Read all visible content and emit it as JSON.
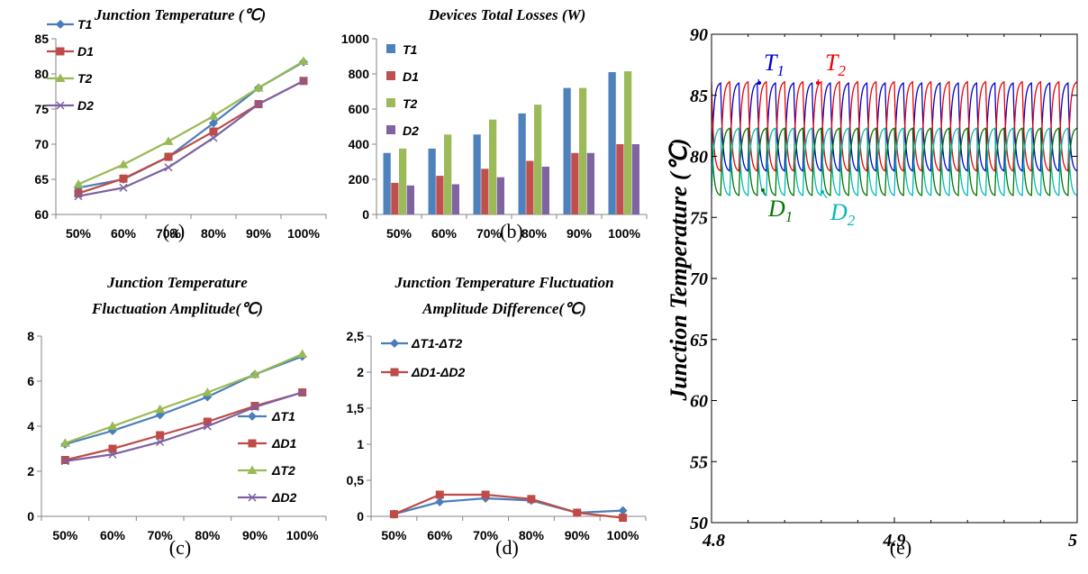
{
  "chart_data": [
    {
      "id": "a",
      "type": "line",
      "title": "Junction Temperature (℃)",
      "subcaption": "(a)",
      "categories": [
        "50%",
        "60%",
        "70%",
        "80%",
        "90%",
        "100%"
      ],
      "ylim": [
        60,
        85
      ],
      "yticks": [
        60,
        65,
        70,
        75,
        80,
        85
      ],
      "legend_position": "top-left",
      "series": [
        {
          "name": "T1",
          "color": "#4a7ebb",
          "marker": "diamond",
          "values": [
            63.8,
            65.0,
            68.2,
            73.0,
            78.0,
            81.7
          ]
        },
        {
          "name": "D1",
          "color": "#be4b48",
          "marker": "square",
          "values": [
            63.0,
            65.1,
            68.2,
            71.8,
            75.7,
            79.0
          ]
        },
        {
          "name": "T2",
          "color": "#98b954",
          "marker": "triangle",
          "values": [
            64.3,
            67.1,
            70.4,
            74.0,
            78.0,
            81.8
          ]
        },
        {
          "name": "D2",
          "color": "#7d60a0",
          "marker": "x",
          "values": [
            62.6,
            63.8,
            66.7,
            70.9,
            75.7,
            79.0
          ]
        }
      ]
    },
    {
      "id": "b",
      "type": "bar",
      "title": "Devices Total Losses (W)",
      "subcaption": "(b)",
      "categories": [
        "50%",
        "60%",
        "70%",
        "80%",
        "90%",
        "100%"
      ],
      "ylim": [
        0,
        1000
      ],
      "yticks": [
        0,
        200,
        400,
        600,
        800,
        1000
      ],
      "legend_position": "top-left",
      "series": [
        {
          "name": "T1",
          "color": "#4f81bd",
          "values": [
            350,
            375,
            455,
            575,
            720,
            810
          ]
        },
        {
          "name": "D1",
          "color": "#c0504d",
          "values": [
            180,
            220,
            260,
            305,
            350,
            400
          ]
        },
        {
          "name": "T2",
          "color": "#9bbb59",
          "values": [
            375,
            455,
            540,
            625,
            720,
            815
          ]
        },
        {
          "name": "D2",
          "color": "#8064a2",
          "values": [
            165,
            172,
            212,
            272,
            350,
            400
          ]
        }
      ]
    },
    {
      "id": "c",
      "type": "line",
      "title_lines": [
        "Junction Temperature",
        "Fluctuation Amplitude(℃)"
      ],
      "subcaption": "(c)",
      "categories": [
        "50%",
        "60%",
        "70%",
        "80%",
        "90%",
        "100%"
      ],
      "ylim": [
        0,
        8
      ],
      "yticks": [
        0,
        2,
        4,
        6,
        8
      ],
      "legend_position": "bottom-right",
      "series": [
        {
          "name": "ΔT1",
          "color": "#4a7ebb",
          "marker": "diamond",
          "values": [
            3.2,
            3.8,
            4.5,
            5.3,
            6.3,
            7.1
          ]
        },
        {
          "name": "ΔD1",
          "color": "#be4b48",
          "marker": "square",
          "values": [
            2.5,
            3.0,
            3.6,
            4.2,
            4.9,
            5.5
          ]
        },
        {
          "name": "ΔT2",
          "color": "#98b954",
          "marker": "triangle",
          "values": [
            3.25,
            4.0,
            4.75,
            5.5,
            6.3,
            7.2
          ]
        },
        {
          "name": "ΔD2",
          "color": "#7d60a0",
          "marker": "x",
          "values": [
            2.45,
            2.75,
            3.3,
            4.0,
            4.85,
            5.5
          ]
        }
      ]
    },
    {
      "id": "d",
      "type": "line",
      "title_lines": [
        "Junction Temperature Fluctuation",
        "Amplitude Difference(℃)"
      ],
      "subcaption": "(d)",
      "categories": [
        "50%",
        "60%",
        "70%",
        "80%",
        "90%",
        "100%"
      ],
      "ylim": [
        0,
        2.5
      ],
      "yticks": [
        0,
        0.5,
        1,
        1.5,
        2,
        2.5
      ],
      "ytick_labels": [
        "0",
        "0,5",
        "1",
        "1,5",
        "2",
        "2,5"
      ],
      "legend_position": "top-left",
      "series": [
        {
          "name": "ΔT1-ΔT2",
          "color": "#4a7ebb",
          "marker": "diamond",
          "values": [
            0.03,
            0.2,
            0.25,
            0.22,
            0.05,
            0.08
          ]
        },
        {
          "name": "ΔD1-ΔD2",
          "color": "#be4b48",
          "marker": "square",
          "values": [
            0.03,
            0.3,
            0.3,
            0.24,
            0.05,
            -0.02
          ]
        }
      ]
    },
    {
      "id": "e",
      "type": "line",
      "subcaption": "(e)",
      "ylabel": "Junction Temperature (℃)",
      "xlim": [
        4.8,
        5.0
      ],
      "xticks": [
        4.8,
        4.9,
        5.0
      ],
      "xtick_labels": [
        "4.8",
        "4.9",
        "5"
      ],
      "ylim": [
        50,
        90
      ],
      "yticks": [
        50,
        55,
        60,
        65,
        70,
        75,
        80,
        85,
        90
      ],
      "period": 0.01,
      "series": [
        {
          "name": "T1",
          "color": "#0000cc",
          "min": 78.8,
          "max": 86.0,
          "phase": 0.0
        },
        {
          "name": "T2",
          "color": "#ee0000",
          "min": 78.8,
          "max": 86.1,
          "phase": 0.5
        },
        {
          "name": "D1",
          "color": "#007700",
          "min": 76.8,
          "max": 82.3,
          "phase": 0.5
        },
        {
          "name": "D2",
          "color": "#00bbbb",
          "min": 76.8,
          "max": 82.3,
          "phase": 0.0
        }
      ],
      "annotations": [
        {
          "label": "T",
          "sub": "1",
          "color": "#0000cc"
        },
        {
          "label": "T",
          "sub": "2",
          "color": "#ee0000"
        },
        {
          "label": "D",
          "sub": "1",
          "color": "#007700"
        },
        {
          "label": "D",
          "sub": "2",
          "color": "#00bbbb"
        }
      ]
    }
  ]
}
